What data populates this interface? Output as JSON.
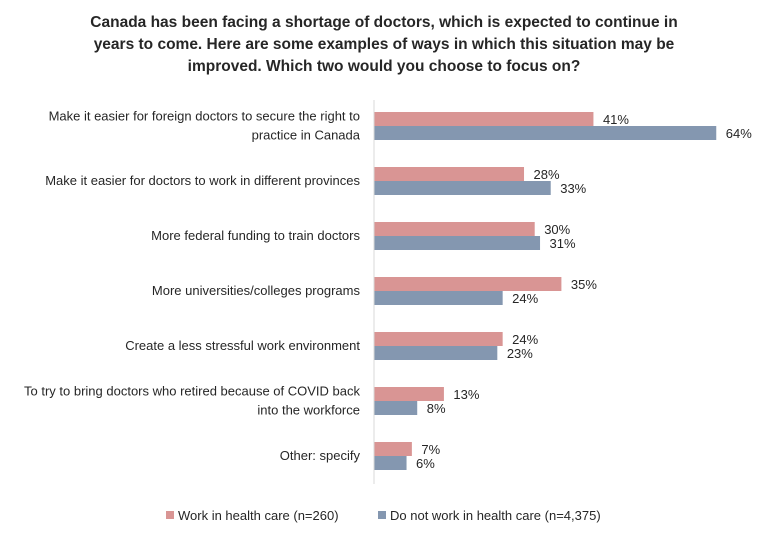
{
  "chart_data": {
    "type": "bar",
    "orientation": "horizontal",
    "title_lines": [
      "Canada has been facing a shortage of doctors, which is expected to continue in",
      "years to come. Here are some examples of ways in which this situation may be",
      "improved. Which two would you choose to focus on?"
    ],
    "categories": [
      [
        "Make it easier for foreign doctors to secure the right to",
        "practice in Canada"
      ],
      [
        "Make it easier for doctors to work in different provinces"
      ],
      [
        "More federal funding to train doctors"
      ],
      [
        "More universities/colleges programs"
      ],
      [
        "Create a less stressful work environment"
      ],
      [
        "To try to bring doctors who retired because of COVID back",
        "into the workforce"
      ],
      [
        "Other: specify"
      ]
    ],
    "series": [
      {
        "name": "Work in health care (n=260)",
        "color": "#D99594",
        "values": [
          41,
          28,
          30,
          35,
          24,
          13,
          7
        ]
      },
      {
        "name": "Do not work in health care (n=4,375)",
        "color": "#8497B0",
        "values": [
          64,
          33,
          31,
          24,
          23,
          8,
          6
        ]
      }
    ],
    "value_format": "percent",
    "xlim": [
      0,
      70
    ],
    "grid": false,
    "legend_position": "bottom"
  }
}
